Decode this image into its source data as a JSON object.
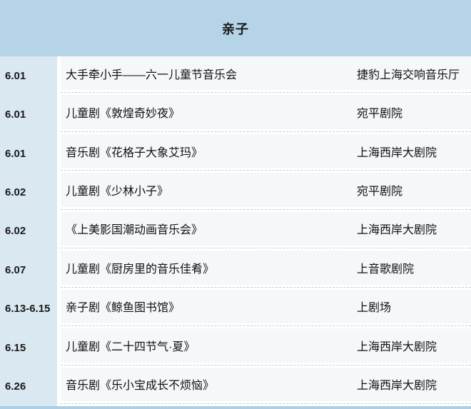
{
  "header": {
    "title": "亲子"
  },
  "table": {
    "rows": [
      {
        "date": "6.01",
        "event": "大手牵小手——六一儿童节音乐会",
        "venue": "捷豹上海交响音乐厅"
      },
      {
        "date": "6.01",
        "event": "儿童剧《敦煌奇妙夜》",
        "venue": "宛平剧院"
      },
      {
        "date": "6.01",
        "event": "音乐剧《花格子大象艾玛》",
        "venue": "上海西岸大剧院"
      },
      {
        "date": "6.02",
        "event": "儿童剧《少林小子》",
        "venue": "宛平剧院"
      },
      {
        "date": "6.02",
        "event": "《上美影国潮动画音乐会》",
        "venue": "上海西岸大剧院"
      },
      {
        "date": "6.07",
        "event": "儿童剧《厨房里的音乐佳肴》",
        "venue": "上音歌剧院"
      },
      {
        "date": "6.13-6.15",
        "event": "亲子剧《鲸鱼图书馆》",
        "venue": "上剧场"
      },
      {
        "date": "6.15",
        "event": "儿童剧《二十四节气·夏》",
        "venue": "上海西岸大剧院"
      },
      {
        "date": "6.26",
        "event": "音乐剧《乐小宝成长不烦恼》",
        "venue": "上海西岸大剧院"
      }
    ]
  },
  "colors": {
    "header_bg": "#b5d4e8",
    "date_column_bg": "#dae8f2",
    "row_bg": "#f4f8fa",
    "separator_dash": "#c6cbd0",
    "bottom_strip": "#aacfe6",
    "text": "#111111"
  }
}
